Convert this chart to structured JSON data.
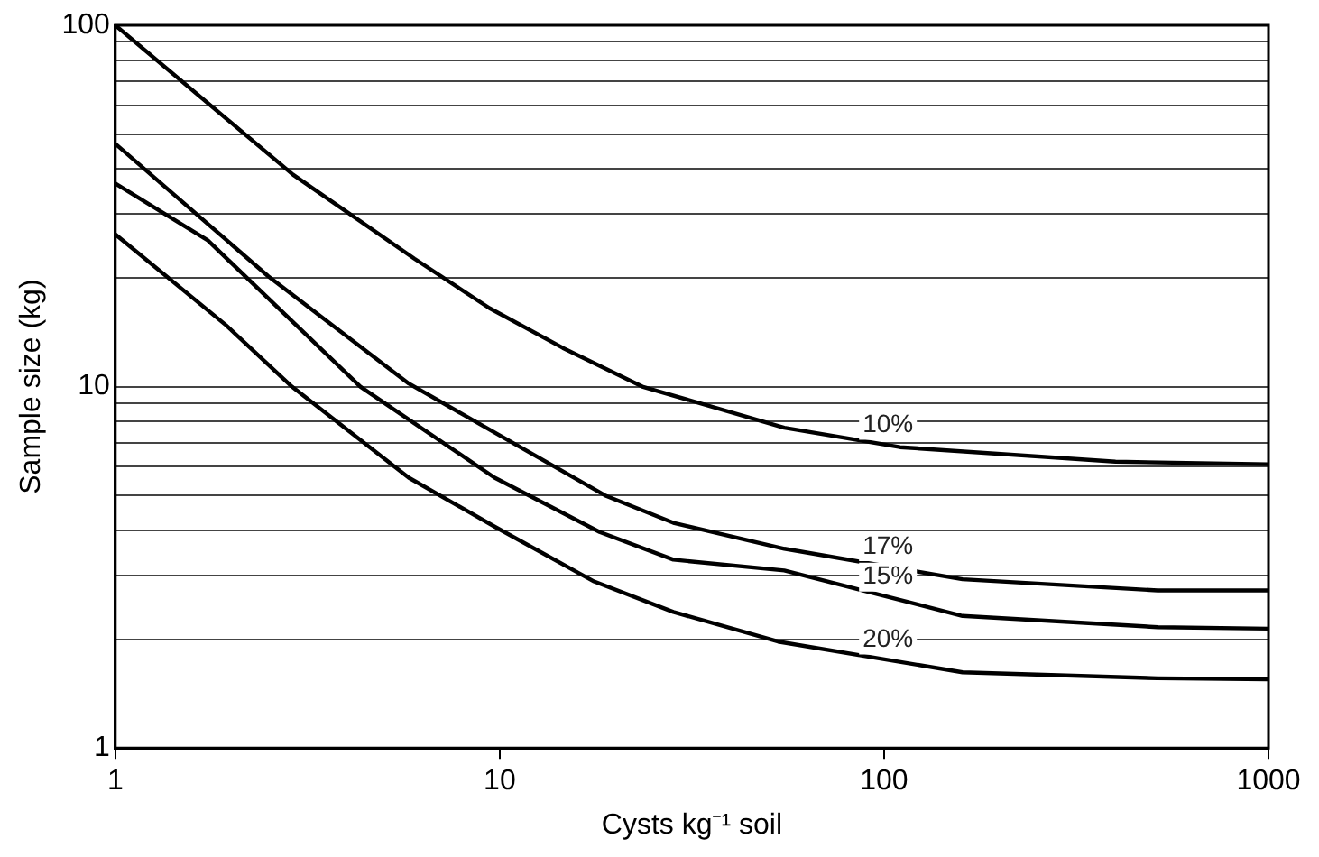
{
  "chart_data": {
    "type": "line",
    "xlabel": "Cysts kg⁻¹ soil",
    "ylabel": "Sample size (kg)",
    "log": "xy",
    "grid": "y",
    "legend": false,
    "marker": "none",
    "line_style": "solid",
    "xlim": [
      1,
      1000
    ],
    "xticks": [
      1,
      10,
      100,
      1000
    ],
    "ylim": [
      1,
      100
    ],
    "yticks": [
      1,
      {
        "value": 2,
        "label": null
      },
      {
        "value": 3,
        "label": null
      },
      {
        "value": 4,
        "label": null
      },
      {
        "value": 5,
        "label": null
      },
      {
        "value": 6,
        "label": null
      },
      {
        "value": 7,
        "label": null
      },
      {
        "value": 8,
        "label": null
      },
      {
        "value": 9,
        "label": null
      },
      10,
      {
        "value": 20,
        "label": null
      },
      {
        "value": 30,
        "label": null
      },
      {
        "value": 40,
        "label": null
      },
      {
        "value": 50,
        "label": null
      },
      {
        "value": 60,
        "label": null
      },
      {
        "value": 70,
        "label": null
      },
      {
        "value": 80,
        "label": null
      },
      {
        "value": 90,
        "label": null
      },
      100
    ],
    "series": [
      {
        "name": "10%",
        "color": "#000000",
        "x": [
          1,
          2.9,
          6,
          9.4,
          14.6,
          23.5,
          55,
          110,
          400,
          1000
        ],
        "values": [
          100,
          38.6,
          22.6,
          16.5,
          12.8,
          10,
          7.7,
          6.8,
          6.2,
          6.1
        ]
      },
      {
        "name": "17%",
        "color": "#000000",
        "x": [
          1,
          2.5,
          5.8,
          18.8,
          28.3,
          55,
          160,
          515,
          1000
        ],
        "values": [
          47,
          20.2,
          10.2,
          5,
          4.2,
          3.56,
          2.93,
          2.73,
          2.73
        ]
      },
      {
        "name": "15%",
        "color": "#000000",
        "x": [
          1,
          1.74,
          4.34,
          9.7,
          18.2,
          28.3,
          55,
          160,
          515,
          1000
        ],
        "values": [
          36.5,
          25.4,
          10,
          5.6,
          3.96,
          3.32,
          3.1,
          2.32,
          2.16,
          2.14
        ]
      },
      {
        "name": "20%",
        "color": "#000000",
        "x": [
          1,
          1.94,
          2.88,
          5.8,
          9.7,
          17.6,
          28.3,
          53,
          160,
          515,
          1000
        ],
        "values": [
          26.4,
          14.8,
          10,
          5.6,
          4.1,
          2.89,
          2.38,
          1.97,
          1.62,
          1.56,
          1.55
        ]
      }
    ]
  }
}
